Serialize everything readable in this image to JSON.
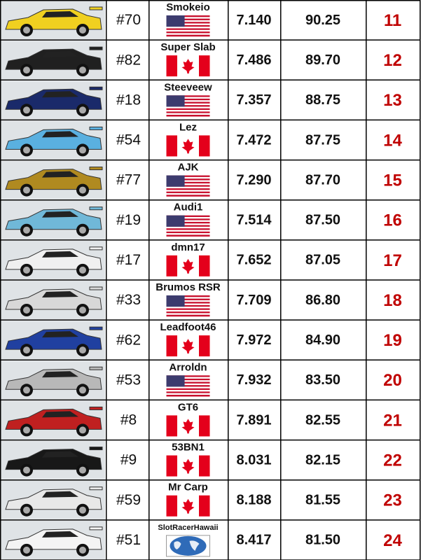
{
  "table": {
    "rows": [
      {
        "car": "#70",
        "driver": "Smokeio",
        "flag": "us",
        "time": "7.140",
        "laps": "90.25",
        "position": 11,
        "car_color": "#f0d020"
      },
      {
        "car": "#82",
        "driver": "Super Slab",
        "flag": "ca",
        "time": "7.486",
        "laps": "89.70",
        "position": 12,
        "car_color": "#202020"
      },
      {
        "car": "#18",
        "driver": "Steeveew",
        "flag": "us",
        "time": "7.357",
        "laps": "88.75",
        "position": 13,
        "car_color": "#1a2a6a"
      },
      {
        "car": "#54",
        "driver": "Lez",
        "flag": "ca",
        "time": "7.472",
        "laps": "87.75",
        "position": 14,
        "car_color": "#5ab0e0"
      },
      {
        "car": "#77",
        "driver": "AJK",
        "flag": "us",
        "time": "7.290",
        "laps": "87.70",
        "position": 15,
        "car_color": "#b08a20"
      },
      {
        "car": "#19",
        "driver": "Audi1",
        "flag": "us",
        "time": "7.514",
        "laps": "87.50",
        "position": 16,
        "car_color": "#70b8d8"
      },
      {
        "car": "#17",
        "driver": "dmn17",
        "flag": "ca",
        "time": "7.652",
        "laps": "87.05",
        "position": 17,
        "car_color": "#f0f0f0"
      },
      {
        "car": "#33",
        "driver": "Brumos RSR",
        "flag": "us",
        "time": "7.709",
        "laps": "86.80",
        "position": 18,
        "car_color": "#d8d8d8"
      },
      {
        "car": "#62",
        "driver": "Leadfoot46",
        "flag": "ca",
        "time": "7.972",
        "laps": "84.90",
        "position": 19,
        "car_color": "#2040a0"
      },
      {
        "car": "#53",
        "driver": "Arroldn",
        "flag": "us",
        "time": "7.932",
        "laps": "83.50",
        "position": 20,
        "car_color": "#b8b8b8"
      },
      {
        "car": "#8",
        "driver": "GT6",
        "flag": "ca",
        "time": "7.891",
        "laps": "82.55",
        "position": 21,
        "car_color": "#c02020"
      },
      {
        "car": "#9",
        "driver": "53BN1",
        "flag": "ca",
        "time": "8.031",
        "laps": "82.15",
        "position": 22,
        "car_color": "#181818"
      },
      {
        "car": "#59",
        "driver": "Mr Carp",
        "flag": "ca",
        "time": "8.188",
        "laps": "81.55",
        "position": 23,
        "car_color": "#e8e8e8"
      },
      {
        "car": "#51",
        "driver": "SlotRacerHawaii",
        "flag": "world",
        "time": "8.417",
        "laps": "81.50",
        "position": 24,
        "car_color": "#f4f4f4"
      }
    ]
  }
}
